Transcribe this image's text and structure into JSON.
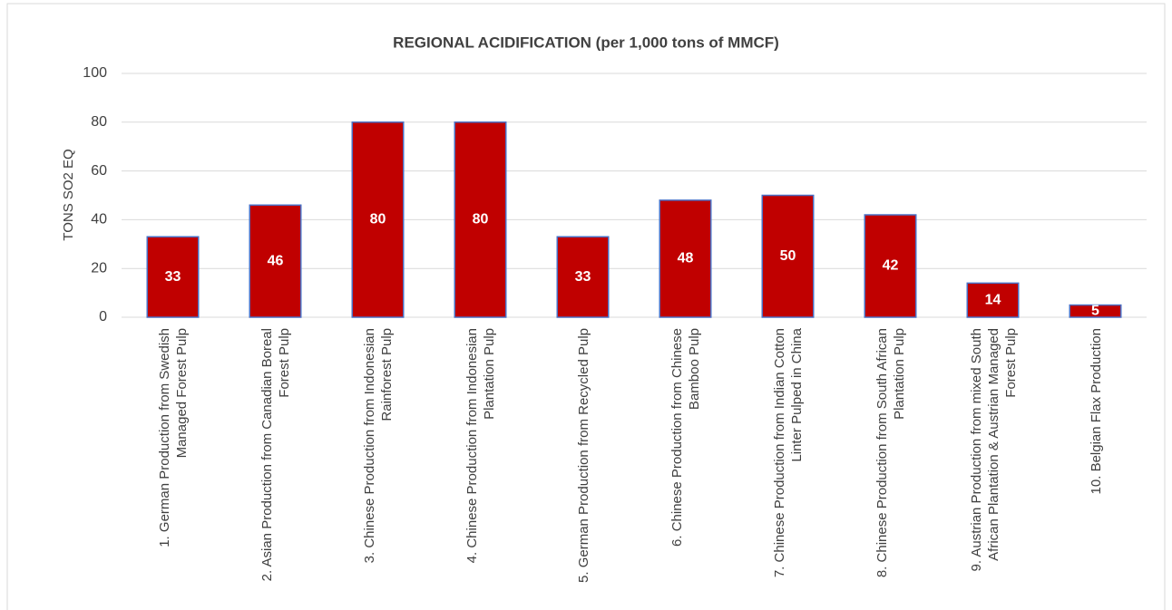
{
  "chart_data": {
    "type": "bar",
    "title": "REGIONAL ACIDIFICATION (per 1,000 tons of MMCF)",
    "y_label": "TONS SO2 EQ",
    "categories": [
      "1. German Production from Swedish Managed Forest Pulp",
      "2. Asian Production from Canadian Boreal Forest Pulp",
      "3. Chinese Production from Indonesian Rainforest Pulp",
      "4. Chinese Production from Indonesian Plantation Pulp",
      "5. German Production from Recycled Pulp",
      "6. Chinese Production from Chinese Bamboo Pulp",
      "7. Chinese Production from Indian Cotton Linter Pulped in China",
      "8. Chinese Production from South African Plantation Pulp",
      "9. Austrian Production from mixed South African Plantation & Austrian Managed Forest Pulp",
      "10. Belgian Flax Production"
    ],
    "values": [
      33,
      46,
      80,
      80,
      33,
      48,
      50,
      42,
      14,
      5
    ],
    "color": "#c00000",
    "ylim": [
      0,
      100
    ],
    "yticks": [
      0,
      20,
      40,
      60,
      80,
      100
    ],
    "grid": true
  }
}
